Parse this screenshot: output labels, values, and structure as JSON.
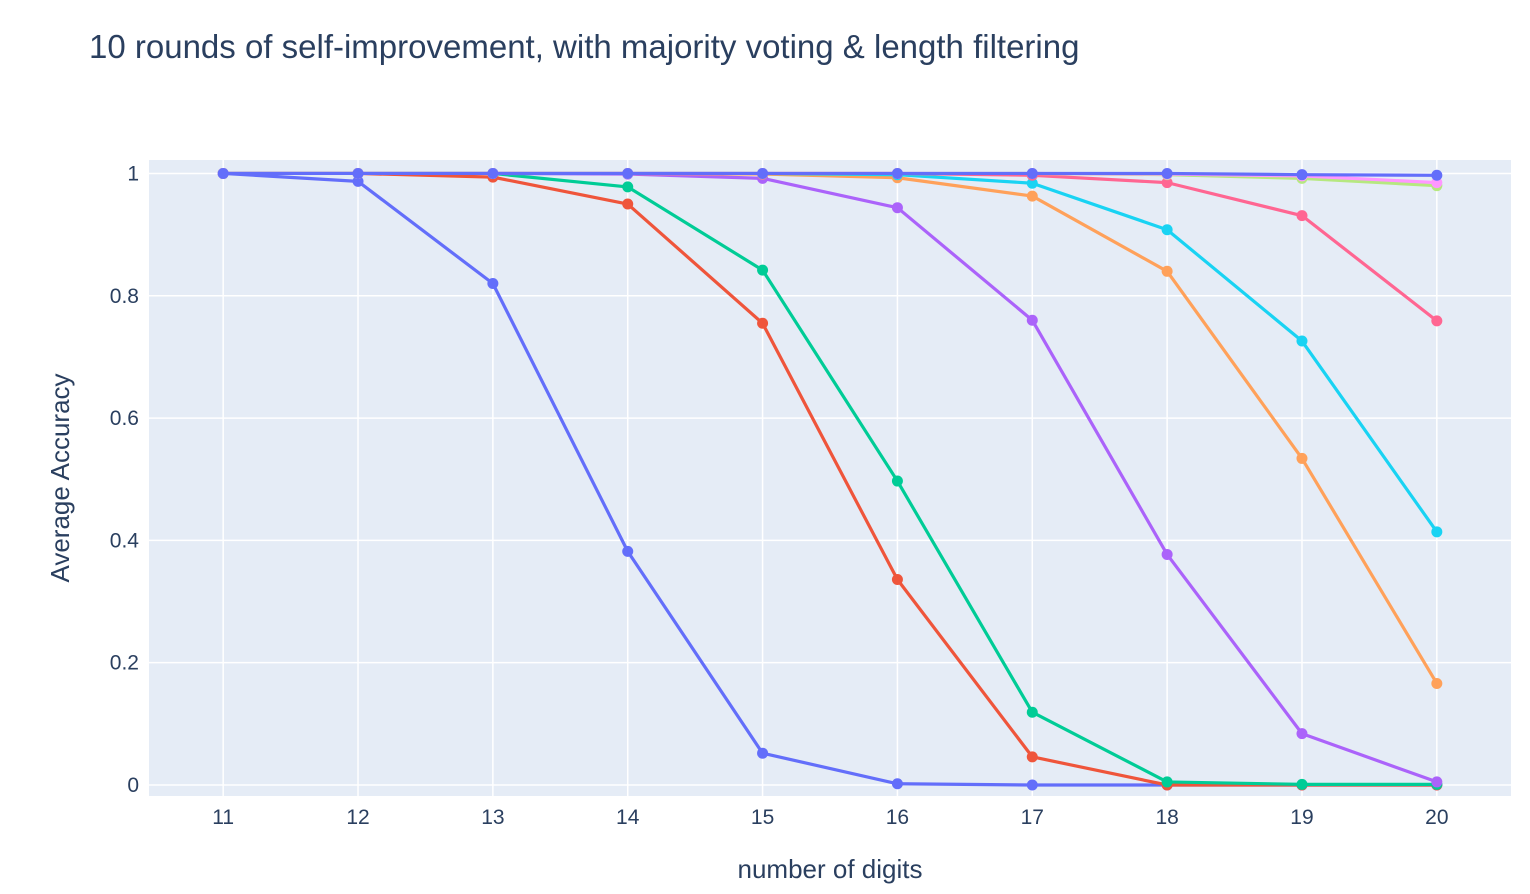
{
  "chart_data": {
    "type": "line",
    "title": "10 rounds of self-improvement, with majority voting & length filtering",
    "xlabel": "number of digits",
    "ylabel": "Average Accuracy",
    "x": [
      11,
      12,
      13,
      14,
      15,
      16,
      17,
      18,
      19,
      20
    ],
    "xlim": [
      10.45,
      20.55
    ],
    "ylim": [
      -0.018,
      1.022
    ],
    "yticks": [
      0,
      0.2,
      0.4,
      0.6,
      0.8,
      1
    ],
    "ytick_labels": [
      "0",
      "0.2",
      "0.4",
      "0.6",
      "0.8",
      "1"
    ],
    "xtick_labels": [
      "11",
      "12",
      "13",
      "14",
      "15",
      "16",
      "17",
      "18",
      "19",
      "20"
    ],
    "grid": true,
    "legend": "none",
    "plot_background": "#e5ecf6",
    "series": [
      {
        "color": "#636efa",
        "values": [
          1.0,
          0.987,
          0.82,
          0.382,
          0.052,
          0.002,
          0.0,
          0.0,
          0.0,
          0.0
        ]
      },
      {
        "color": "#ef553b",
        "values": [
          1.0,
          1.0,
          0.994,
          0.95,
          0.755,
          0.336,
          0.046,
          0.0,
          0.0,
          0.0
        ]
      },
      {
        "color": "#00cc96",
        "values": [
          1.0,
          1.0,
          1.0,
          0.978,
          0.842,
          0.497,
          0.119,
          0.005,
          0.001,
          0.001
        ]
      },
      {
        "color": "#ab63fa",
        "values": [
          1.0,
          1.0,
          1.0,
          0.999,
          0.992,
          0.944,
          0.76,
          0.377,
          0.084,
          0.005
        ]
      },
      {
        "color": "#ffa15a",
        "values": [
          1.0,
          1.0,
          1.0,
          1.0,
          0.999,
          0.993,
          0.963,
          0.84,
          0.534,
          0.166
        ]
      },
      {
        "color": "#19d3f3",
        "values": [
          1.0,
          1.0,
          1.0,
          1.0,
          1.0,
          0.998,
          0.984,
          0.908,
          0.726,
          0.414
        ]
      },
      {
        "color": "#ff6692",
        "values": [
          1.0,
          1.0,
          1.0,
          1.0,
          1.0,
          1.0,
          0.997,
          0.985,
          0.931,
          0.759
        ]
      },
      {
        "color": "#b6e880",
        "values": [
          1.0,
          1.0,
          1.0,
          1.0,
          1.0,
          1.0,
          1.0,
          0.998,
          0.992,
          0.98
        ]
      },
      {
        "color": "#ff97ff",
        "values": [
          1.0,
          1.0,
          1.0,
          1.0,
          1.0,
          1.0,
          1.0,
          0.999,
          0.996,
          0.985
        ]
      },
      {
        "color": "#636efa",
        "values": [
          1.0,
          1.0,
          1.0,
          1.0,
          1.0,
          1.0,
          1.0,
          1.0,
          0.998,
          0.997
        ]
      }
    ]
  }
}
